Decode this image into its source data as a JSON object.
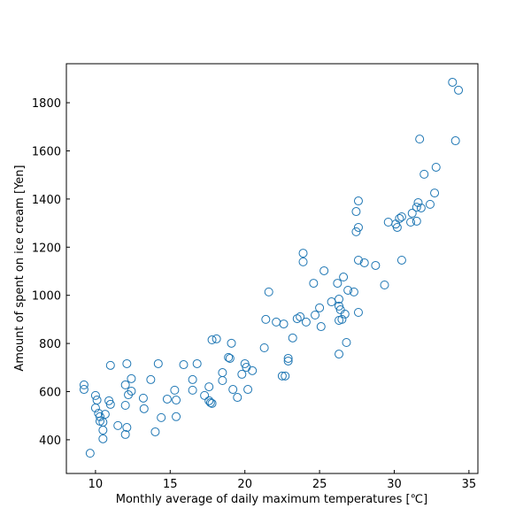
{
  "chart_data": {
    "type": "scatter",
    "xlabel": "Monthly average of daily maximum temperatures [℃]",
    "ylabel": "Amount of spent on ice cream [Yen]",
    "color": "#1f77b4",
    "xlim": [
      8.05,
      35.6
    ],
    "ylim": [
      260,
      1962
    ],
    "xticks": [
      10,
      15,
      20,
      25,
      30,
      35
    ],
    "yticks": [
      400,
      600,
      800,
      1000,
      1200,
      1400,
      1600,
      1800
    ],
    "x": [
      9.23,
      9.23,
      9.64,
      10.0,
      10.0,
      10.1,
      10.2,
      10.3,
      10.3,
      10.5,
      10.5,
      10.5,
      10.65,
      10.9,
      11.0,
      11.0,
      11.5,
      12.0,
      12.0,
      12.0,
      12.1,
      12.1,
      12.2,
      12.4,
      12.4,
      13.2,
      13.25,
      13.7,
      14.0,
      14.2,
      14.4,
      14.8,
      15.3,
      15.4,
      15.4,
      15.9,
      16.5,
      16.5,
      16.8,
      17.3,
      17.6,
      17.6,
      17.7,
      17.8,
      17.8,
      18.1,
      18.5,
      18.5,
      18.9,
      19.0,
      19.1,
      19.2,
      19.5,
      19.8,
      20.0,
      20.1,
      20.2,
      20.5,
      21.3,
      21.4,
      21.6,
      22.1,
      22.5,
      22.7,
      22.6,
      22.9,
      22.9,
      23.2,
      23.5,
      23.7,
      24.1,
      23.9,
      23.9,
      24.6,
      24.7,
      25.0,
      25.1,
      25.3,
      25.8,
      26.2,
      26.3,
      26.3,
      26.3,
      26.3,
      26.5,
      26.4,
      26.6,
      26.7,
      26.8,
      26.9,
      27.3,
      27.45,
      27.45,
      27.6,
      27.6,
      27.6,
      27.6,
      28.0,
      28.75,
      29.35,
      29.6,
      30.1,
      30.2,
      30.35,
      30.5,
      30.5,
      31.1,
      31.2,
      31.5,
      31.5,
      31.8,
      31.7,
      32.0,
      32.4,
      32.7,
      32.8,
      33.9,
      34.3,
      34.1,
      31.6
    ],
    "y": [
      628,
      609,
      344,
      584,
      532,
      565,
      510,
      477,
      496,
      473,
      440,
      404,
      506,
      562,
      547,
      709,
      459,
      543,
      628,
      422,
      451,
      716,
      587,
      654,
      602,
      573,
      529,
      650,
      433,
      716,
      492,
      569,
      606,
      496,
      565,
      712,
      606,
      650,
      716,
      584,
      620,
      562,
      554,
      551,
      815,
      819,
      679,
      646,
      742,
      738,
      801,
      609,
      576,
      672,
      716,
      701,
      609,
      687,
      782,
      900,
      1014,
      889,
      665,
      665,
      881,
      738,
      727,
      823,
      903,
      911,
      889,
      1175,
      1139,
      1050,
      918,
      948,
      870,
      1102,
      973,
      1050,
      955,
      984,
      756,
      896,
      900,
      940,
      1076,
      922,
      804,
      1021,
      1014,
      1264,
      1348,
      1392,
      1282,
      1146,
      929,
      1135,
      1124,
      1043,
      1304,
      1296,
      1282,
      1319,
      1326,
      1146,
      1304,
      1341,
      1366,
      1308,
      1363,
      1649,
      1503,
      1378,
      1425,
      1532,
      1885,
      1852,
      1642,
      1385
    ]
  }
}
